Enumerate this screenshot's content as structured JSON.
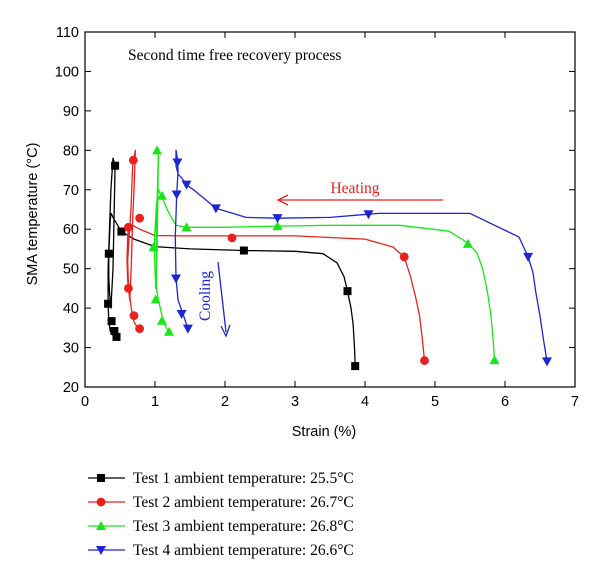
{
  "chart_data": {
    "type": "line",
    "title": "Second time free recovery process",
    "xlabel": "Strain (%)",
    "ylabel": "SMA temperature (°C)",
    "xlim": [
      0,
      7
    ],
    "ylim": [
      20,
      110
    ],
    "x_ticks": [
      "0",
      "1",
      "2",
      "3",
      "4",
      "5",
      "6",
      "7"
    ],
    "y_ticks": [
      "20",
      "30",
      "40",
      "50",
      "60",
      "70",
      "80",
      "90",
      "100",
      "110"
    ],
    "grid": false,
    "legend_position": "bottom",
    "annotations": {
      "heating": {
        "text": "Heating",
        "color": "#e8201e"
      },
      "cooling": {
        "text": "Cooling",
        "color": "#1d25d4"
      }
    },
    "series": [
      {
        "name": "Test 1 ambient temperature: 25.5°C",
        "color": "#000000",
        "marker": "square",
        "x": [
          3.86,
          3.85,
          3.83,
          3.8,
          3.75,
          3.7,
          3.6,
          3.4,
          3.0,
          2.27,
          1.5,
          1.0,
          0.7,
          0.52,
          0.45,
          0.4,
          0.38,
          0.37,
          0.36,
          0.35,
          0.34,
          0.34,
          0.35,
          0.37,
          0.4,
          0.43,
          0.4,
          0.37,
          0.35,
          0.33,
          0.33,
          0.34,
          0.36,
          0.39,
          0.42
        ],
        "y": [
          25.3,
          30.0,
          36.0,
          40.0,
          44.3,
          48.0,
          51.5,
          53.8,
          54.4,
          54.6,
          55.0,
          55.6,
          57.5,
          59.4,
          61.5,
          63.0,
          63.8,
          64.0,
          62.0,
          58.0,
          53.8,
          48.0,
          44.0,
          40.0,
          50.0,
          76.1,
          78.0,
          70.0,
          60.0,
          50.0,
          41.1,
          36.7,
          34.2,
          33.3,
          32.7
        ],
        "markers": [
          [
            3.86,
            25.3
          ],
          [
            3.75,
            44.3
          ],
          [
            2.27,
            54.6
          ],
          [
            0.52,
            59.4
          ],
          [
            0.34,
            53.8
          ],
          [
            0.33,
            41.1
          ],
          [
            0.38,
            36.7
          ],
          [
            0.42,
            34.2
          ],
          [
            0.45,
            32.7
          ],
          [
            0.43,
            76.1
          ]
        ]
      },
      {
        "name": "Test 2 ambient temperature: 26.7°C",
        "color": "#e8201e",
        "marker": "circle",
        "x": [
          4.85,
          4.82,
          4.78,
          4.72,
          4.65,
          4.56,
          4.4,
          4.0,
          3.0,
          2.1,
          1.4,
          1.0,
          0.78,
          0.68,
          0.64,
          0.62,
          0.61,
          0.6,
          0.61,
          0.64,
          0.66,
          0.68,
          0.7,
          0.72,
          0.68,
          0.66,
          0.63,
          0.61,
          0.62,
          0.66,
          0.7,
          0.75,
          0.78
        ],
        "y": [
          26.7,
          32.0,
          38.0,
          43.0,
          48.0,
          53.0,
          55.5,
          57.5,
          58.3,
          58.3,
          58.3,
          58.4,
          60.0,
          61.0,
          61.0,
          60.5,
          58.0,
          52.0,
          47.0,
          42.0,
          50.0,
          62.0,
          70.0,
          80.0,
          76.0,
          66.0,
          58.0,
          52.0,
          46.0,
          40.0,
          36.5,
          35.0,
          34.8
        ],
        "markers": [
          [
            4.85,
            26.7
          ],
          [
            4.56,
            53.0
          ],
          [
            2.1,
            57.8
          ],
          [
            0.62,
            60.5
          ],
          [
            0.78,
            62.8
          ],
          [
            0.69,
            77.5
          ],
          [
            0.62,
            45.0
          ],
          [
            0.7,
            38.1
          ],
          [
            0.78,
            34.8
          ]
        ]
      },
      {
        "name": "Test 3 ambient temperature: 26.8°C",
        "color": "#19e619",
        "marker": "triangle-up",
        "x": [
          5.85,
          5.83,
          5.8,
          5.75,
          5.68,
          5.6,
          5.47,
          5.2,
          4.5,
          3.5,
          2.75,
          2.0,
          1.45,
          1.3,
          1.2,
          1.1,
          1.05,
          1.02,
          1.0,
          0.99,
          1.0,
          1.01,
          1.03,
          1.05,
          1.04,
          1.02,
          1.02,
          1.05,
          1.1,
          1.16,
          1.2
        ],
        "y": [
          26.8,
          32.0,
          38.0,
          44.0,
          50.0,
          54.0,
          56.5,
          59.5,
          61.0,
          61.0,
          60.8,
          60.5,
          60.5,
          61.0,
          64.0,
          68.0,
          70.0,
          66.0,
          60.0,
          55.0,
          50.0,
          45.0,
          55.0,
          80.0,
          74.0,
          60.0,
          45.0,
          42.0,
          38.0,
          35.0,
          34.0
        ],
        "markers": [
          [
            5.85,
            26.8
          ],
          [
            5.47,
            56.3
          ],
          [
            2.75,
            60.8
          ],
          [
            1.45,
            60.5
          ],
          [
            1.1,
            68.5
          ],
          [
            0.98,
            55.5
          ],
          [
            1.03,
            80.0
          ],
          [
            1.01,
            42.2
          ],
          [
            1.1,
            36.8
          ],
          [
            1.2,
            34.0
          ]
        ]
      },
      {
        "name": "Test 4 ambient temperature: 26.6°C",
        "color": "#1d25d4",
        "marker": "triangle-down",
        "x": [
          6.6,
          6.55,
          6.5,
          6.44,
          6.4,
          6.33,
          6.2,
          5.5,
          4.2,
          4.05,
          3.5,
          2.75,
          2.3,
          1.87,
          1.55,
          1.45,
          1.38,
          1.33,
          1.3,
          1.3,
          1.32,
          1.33,
          1.31,
          1.29,
          1.3,
          1.33,
          1.4,
          1.47
        ],
        "y": [
          26.5,
          32.0,
          38.0,
          44.0,
          49.0,
          53.0,
          58.0,
          64.0,
          64.0,
          63.8,
          63.0,
          62.8,
          63.0,
          65.3,
          70.0,
          71.3,
          73.0,
          74.0,
          76.0,
          80.0,
          78.0,
          75.0,
          68.8,
          58.0,
          47.5,
          42.0,
          38.5,
          34.8
        ],
        "markers": [
          [
            6.6,
            26.5
          ],
          [
            6.33,
            53.0
          ],
          [
            4.05,
            63.8
          ],
          [
            2.75,
            62.8
          ],
          [
            1.87,
            65.3
          ],
          [
            1.45,
            71.3
          ],
          [
            1.32,
            76.9
          ],
          [
            1.31,
            68.8
          ],
          [
            1.3,
            47.5
          ],
          [
            1.38,
            38.5
          ],
          [
            1.47,
            34.8
          ]
        ]
      }
    ]
  }
}
